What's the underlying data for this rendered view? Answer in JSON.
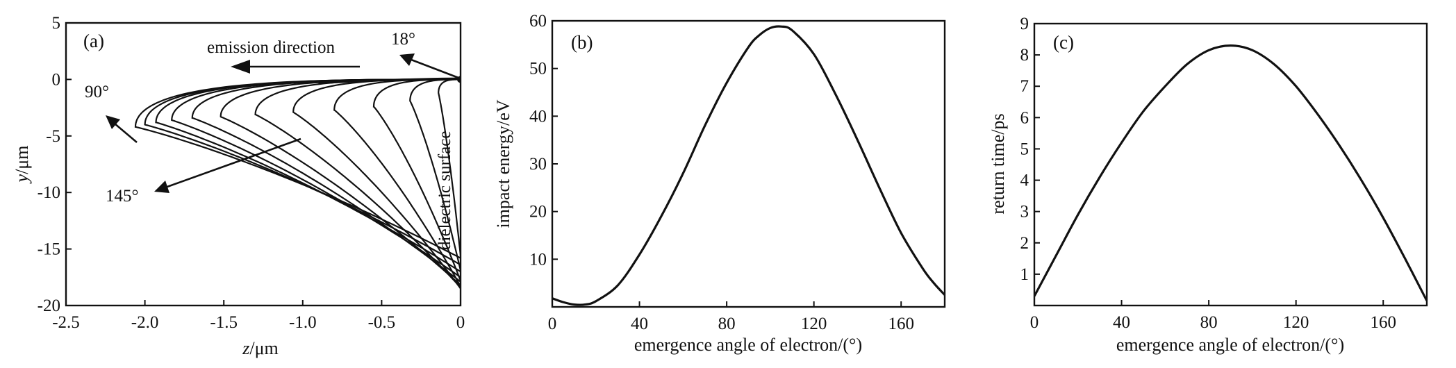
{
  "chart_data": [
    {
      "type": "line",
      "panel_label": "(a)",
      "xlabel_var": "z",
      "xlabel_unit": "/μm",
      "ylabel_var": "y",
      "ylabel_unit": "/μm",
      "xlim": [
        -2.5,
        0
      ],
      "ylim": [
        -20,
        5
      ],
      "x_ticks": [
        -2.5,
        -2.0,
        -1.5,
        -1.0,
        -0.5,
        0
      ],
      "x_tick_labels": [
        "-2.5",
        "-2.0",
        "-1.5",
        "-1.0",
        "-0.5",
        "0"
      ],
      "y_ticks": [
        5,
        0,
        -5,
        -10,
        -15,
        -20
      ],
      "y_tick_labels": [
        "5",
        "0",
        "-5",
        "-10",
        "-15",
        "-20"
      ],
      "series": [
        {
          "apex_z": -2.06,
          "apex_y": -4.2,
          "end_y": -15.8
        },
        {
          "apex_z": -2.0,
          "apex_y": -4.0,
          "end_y": -16.4
        },
        {
          "apex_z": -1.93,
          "apex_y": -3.8,
          "end_y": -17.0
        },
        {
          "apex_z": -1.83,
          "apex_y": -3.6,
          "end_y": -17.5
        },
        {
          "apex_z": -1.7,
          "apex_y": -3.4,
          "end_y": -17.9
        },
        {
          "apex_z": -1.52,
          "apex_y": -3.3,
          "end_y": -18.2
        },
        {
          "apex_z": -1.3,
          "apex_y": -3.1,
          "end_y": -18.4
        },
        {
          "apex_z": -1.06,
          "apex_y": -2.9,
          "end_y": -18.5
        },
        {
          "apex_z": -0.8,
          "apex_y": -2.7,
          "end_y": -18.3
        },
        {
          "apex_z": -0.55,
          "apex_y": -2.4,
          "end_y": -17.8
        },
        {
          "apex_z": -0.32,
          "apex_y": -1.9,
          "end_y": -16.9
        },
        {
          "apex_z": -0.14,
          "apex_y": -1.2,
          "end_y": -15.6
        }
      ],
      "annotations": {
        "emission_direction": "emission direction",
        "angle_18": "18°",
        "angle_90": "90°",
        "angle_145": "145°",
        "surface": "dielectric surface"
      }
    },
    {
      "type": "line",
      "panel_label": "(b)",
      "xlabel": "emergence angle of electron/(°)",
      "ylabel": "impact energy/eV",
      "xlim": [
        0,
        180
      ],
      "ylim": [
        0,
        60
      ],
      "x_ticks": [
        0,
        40,
        80,
        120,
        160
      ],
      "x_tick_labels": [
        "0",
        "40",
        "80",
        "120",
        "160"
      ],
      "y_ticks": [
        10,
        20,
        30,
        40,
        50,
        60
      ],
      "y_tick_labels": [
        "10",
        "20",
        "30",
        "40",
        "50",
        "60"
      ],
      "series": [
        {
          "x": [
            0,
            5,
            10,
            15,
            20,
            30,
            40,
            50,
            60,
            70,
            80,
            90,
            95,
            100,
            105,
            110,
            120,
            130,
            140,
            150,
            160,
            170,
            175,
            180
          ],
          "y": [
            1.8,
            1.0,
            0.5,
            0.5,
            1.2,
            4.5,
            11,
            19,
            28,
            38,
            47,
            54.5,
            57,
            58.5,
            58.8,
            58,
            53,
            44.5,
            35,
            25,
            15.5,
            8,
            5,
            2.5
          ]
        }
      ]
    },
    {
      "type": "line",
      "panel_label": "(c)",
      "xlabel": "emergence angle of electron/(°)",
      "ylabel": "return time/ps",
      "xlim": [
        0,
        180
      ],
      "ylim": [
        0,
        9
      ],
      "x_ticks": [
        0,
        40,
        80,
        120,
        160
      ],
      "x_tick_labels": [
        "0",
        "40",
        "80",
        "120",
        "160"
      ],
      "y_ticks": [
        1,
        2,
        3,
        4,
        5,
        6,
        7,
        8,
        9
      ],
      "y_tick_labels": [
        "1",
        "2",
        "3",
        "4",
        "5",
        "6",
        "7",
        "8",
        "9"
      ],
      "series": [
        {
          "x": [
            0,
            10,
            20,
            30,
            40,
            50,
            60,
            70,
            80,
            90,
            100,
            110,
            120,
            130,
            140,
            150,
            160,
            170,
            180
          ],
          "y": [
            0.3,
            1.6,
            2.9,
            4.1,
            5.2,
            6.2,
            7.0,
            7.7,
            8.15,
            8.3,
            8.15,
            7.7,
            7.0,
            6.1,
            5.1,
            4.0,
            2.8,
            1.5,
            0.15
          ]
        }
      ]
    }
  ]
}
